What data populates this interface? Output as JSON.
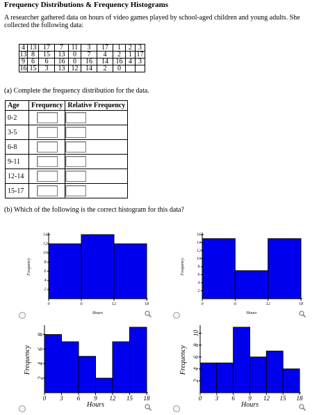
{
  "title": "Frequency Distributions & Frequency Histograms",
  "intro": "A researcher gathered data on hours of video games played by school-aged children and young adults. She collected the following data:",
  "data_table": [
    [
      "4",
      "13",
      "17",
      "7",
      "11",
      "3",
      "17",
      "1",
      "2",
      "3"
    ],
    [
      "13",
      "8",
      "15",
      "13",
      "0",
      "7",
      "4",
      "2",
      "1",
      "17"
    ],
    [
      "9",
      "6",
      "6",
      "16",
      "0",
      "16",
      "14",
      "16",
      "4",
      "3"
    ],
    [
      "16",
      "15",
      "3",
      "13",
      "12",
      "14",
      "2",
      "0",
      "",
      ""
    ]
  ],
  "part_a": "(a) Complete the frequency distribution for the data.",
  "freq_table": {
    "headers": [
      "Age",
      "Frequency",
      "Relative Frequency"
    ],
    "rows": [
      "0-2",
      "3-5",
      "6-8",
      "9-11",
      "12-14",
      "15-17"
    ]
  },
  "part_b": "(b) Which of the following is the correct histogram for this data?",
  "chart_data": [
    {
      "type": "bar",
      "edges": [
        0,
        6,
        12,
        18
      ],
      "values": [
        12,
        14,
        12
      ],
      "ylim": [
        0,
        14
      ],
      "yticks": [
        2,
        4,
        6,
        8,
        10,
        12,
        14
      ],
      "xticks": [
        "0",
        "6",
        "12",
        "18"
      ],
      "xlabel": "Hours",
      "ylabel": "Frequency",
      "color": "#0000ee"
    },
    {
      "type": "bar",
      "edges": [
        0,
        6,
        12,
        18
      ],
      "values": [
        15,
        7,
        15
      ],
      "ylim": [
        0,
        16
      ],
      "yticks": [
        2,
        4,
        6,
        8,
        10,
        12,
        14,
        16
      ],
      "xticks": [
        "0",
        "6",
        "12",
        "18"
      ],
      "xlabel": "Hours",
      "ylabel": "Frequency",
      "color": "#0000ee"
    },
    {
      "type": "bar",
      "edges": [
        0,
        3,
        6,
        9,
        12,
        15,
        18
      ],
      "values": [
        8,
        7,
        5,
        2,
        7,
        9
      ],
      "ylim": [
        0,
        9
      ],
      "yticks": [
        2,
        4,
        6,
        8
      ],
      "xticks": [
        "0",
        "3",
        "6",
        "9",
        "12",
        "15",
        "18"
      ],
      "xlabel": "Hours",
      "ylabel": "Frequency",
      "color": "#0000ee"
    },
    {
      "type": "bar",
      "edges": [
        0,
        3,
        6,
        9,
        12,
        15,
        18
      ],
      "values": [
        5,
        5,
        11,
        6,
        7,
        4
      ],
      "ylim": [
        0,
        11
      ],
      "yticks": [
        2,
        4,
        6,
        8,
        10
      ],
      "xticks": [
        "0",
        "3",
        "6",
        "9",
        "12",
        "15",
        "18"
      ],
      "xlabel": "Hours",
      "ylabel": "Frequency",
      "color": "#0000ee"
    }
  ]
}
